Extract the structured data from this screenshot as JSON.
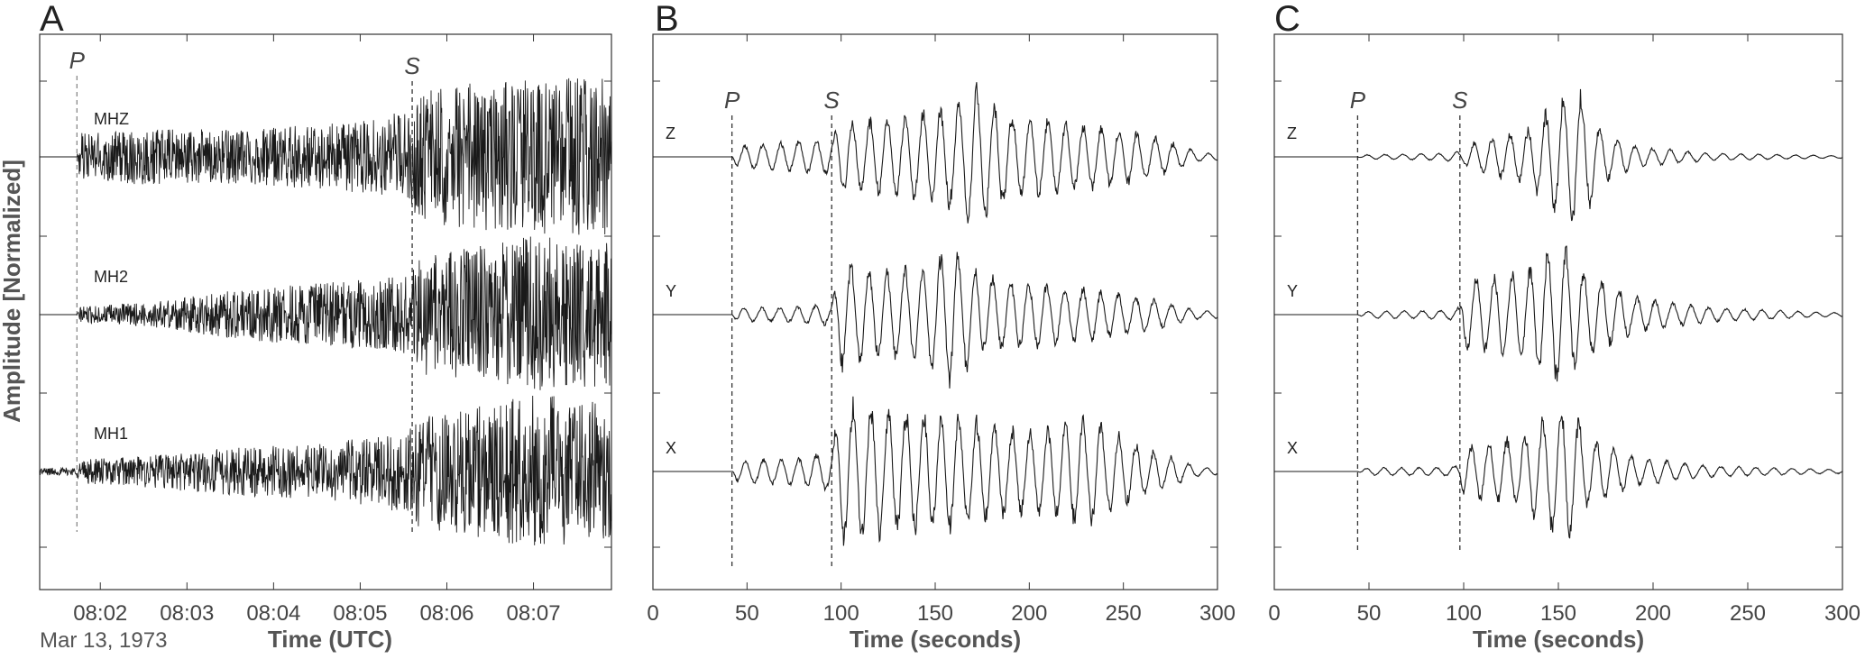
{
  "figure": {
    "ylabel": "Amplitude [Normalized]",
    "date_label": "Mar 13, 1973"
  },
  "chart_data": [
    {
      "type": "line",
      "panel": "A",
      "xlabel": "Time (UTC)",
      "ylabel": "Amplitude [Normalized]",
      "x_unit": "minutes after 08:00 UTC",
      "xlim": [
        1.3,
        7.9
      ],
      "x_ticks": [
        2,
        3,
        4,
        5,
        6,
        7
      ],
      "x_tick_labels": [
        "08:02",
        "08:03",
        "08:04",
        "08:05",
        "08:06",
        "08:07"
      ],
      "phase_picks": [
        {
          "label": "P",
          "x": 1.73
        },
        {
          "label": "S",
          "x": 5.6
        }
      ],
      "grid": false,
      "series": [
        {
          "name": "MHZ",
          "envelope": [
            [
              1.3,
              0.0
            ],
            [
              1.73,
              0.0
            ],
            [
              1.76,
              0.3
            ],
            [
              2.5,
              0.35
            ],
            [
              3.5,
              0.35
            ],
            [
              4.5,
              0.4
            ],
            [
              5.2,
              0.5
            ],
            [
              5.6,
              0.6
            ],
            [
              5.65,
              0.8
            ],
            [
              6.3,
              0.95
            ],
            [
              7.0,
              1.0
            ],
            [
              7.9,
              1.0
            ]
          ]
        },
        {
          "name": "MH2",
          "envelope": [
            [
              1.3,
              0.0
            ],
            [
              1.73,
              0.0
            ],
            [
              1.76,
              0.1
            ],
            [
              2.5,
              0.15
            ],
            [
              3.5,
              0.3
            ],
            [
              4.5,
              0.4
            ],
            [
              5.2,
              0.45
            ],
            [
              5.6,
              0.5
            ],
            [
              5.65,
              0.75
            ],
            [
              6.5,
              0.9
            ],
            [
              7.0,
              1.0
            ],
            [
              7.9,
              0.9
            ]
          ]
        },
        {
          "name": "MH1",
          "envelope": [
            [
              1.3,
              0.05
            ],
            [
              1.73,
              0.05
            ],
            [
              1.76,
              0.15
            ],
            [
              2.5,
              0.2
            ],
            [
              3.5,
              0.3
            ],
            [
              4.5,
              0.35
            ],
            [
              5.2,
              0.45
            ],
            [
              5.6,
              0.55
            ],
            [
              5.65,
              0.7
            ],
            [
              6.5,
              0.85
            ],
            [
              7.1,
              1.0
            ],
            [
              7.9,
              0.85
            ]
          ]
        }
      ]
    },
    {
      "type": "line",
      "panel": "B",
      "xlabel": "Time (seconds)",
      "xlim": [
        0,
        300
      ],
      "x_ticks": [
        0,
        50,
        100,
        150,
        200,
        250,
        300
      ],
      "phase_picks": [
        {
          "label": "P",
          "x": 42
        },
        {
          "label": "S",
          "x": 95
        }
      ],
      "grid": false,
      "series": [
        {
          "name": "Z",
          "envelope": [
            [
              0,
              0
            ],
            [
              42,
              0
            ],
            [
              45,
              0.15
            ],
            [
              70,
              0.2
            ],
            [
              95,
              0.25
            ],
            [
              100,
              0.5
            ],
            [
              130,
              0.55
            ],
            [
              160,
              0.7
            ],
            [
              172,
              1.0
            ],
            [
              190,
              0.6
            ],
            [
              230,
              0.45
            ],
            [
              260,
              0.35
            ],
            [
              292,
              0.05
            ]
          ]
        },
        {
          "name": "Y",
          "envelope": [
            [
              0,
              0
            ],
            [
              42,
              0
            ],
            [
              45,
              0.1
            ],
            [
              70,
              0.1
            ],
            [
              95,
              0.15
            ],
            [
              100,
              0.75
            ],
            [
              120,
              0.6
            ],
            [
              145,
              0.7
            ],
            [
              158,
              1.0
            ],
            [
              175,
              0.55
            ],
            [
              220,
              0.4
            ],
            [
              260,
              0.25
            ],
            [
              292,
              0.05
            ]
          ]
        },
        {
          "name": "X",
          "envelope": [
            [
              0,
              0
            ],
            [
              42,
              0
            ],
            [
              45,
              0.15
            ],
            [
              80,
              0.2
            ],
            [
              95,
              0.3
            ],
            [
              100,
              1.0
            ],
            [
              130,
              0.85
            ],
            [
              160,
              0.8
            ],
            [
              200,
              0.55
            ],
            [
              230,
              0.75
            ],
            [
              260,
              0.35
            ],
            [
              292,
              0.05
            ]
          ]
        }
      ]
    },
    {
      "type": "line",
      "panel": "C",
      "xlabel": "Time (seconds)",
      "xlim": [
        0,
        300
      ],
      "x_ticks": [
        0,
        50,
        100,
        150,
        200,
        250,
        300
      ],
      "phase_picks": [
        {
          "label": "P",
          "x": 44
        },
        {
          "label": "S",
          "x": 98
        }
      ],
      "grid": false,
      "series": [
        {
          "name": "Z",
          "envelope": [
            [
              0,
              0
            ],
            [
              44,
              0
            ],
            [
              48,
              0.03
            ],
            [
              90,
              0.05
            ],
            [
              98,
              0.08
            ],
            [
              105,
              0.2
            ],
            [
              135,
              0.4
            ],
            [
              150,
              0.8
            ],
            [
              160,
              1.0
            ],
            [
              172,
              0.4
            ],
            [
              190,
              0.15
            ],
            [
              230,
              0.05
            ],
            [
              292,
              0.02
            ]
          ]
        },
        {
          "name": "Y",
          "envelope": [
            [
              0,
              0
            ],
            [
              44,
              0
            ],
            [
              48,
              0.05
            ],
            [
              90,
              0.06
            ],
            [
              98,
              0.1
            ],
            [
              100,
              0.5
            ],
            [
              130,
              0.6
            ],
            [
              152,
              1.0
            ],
            [
              165,
              0.6
            ],
            [
              190,
              0.25
            ],
            [
              230,
              0.1
            ],
            [
              292,
              0.03
            ]
          ]
        },
        {
          "name": "X",
          "envelope": [
            [
              0,
              0
            ],
            [
              44,
              0
            ],
            [
              48,
              0.05
            ],
            [
              90,
              0.06
            ],
            [
              98,
              0.1
            ],
            [
              100,
              0.35
            ],
            [
              130,
              0.5
            ],
            [
              155,
              1.0
            ],
            [
              165,
              0.5
            ],
            [
              190,
              0.2
            ],
            [
              230,
              0.08
            ],
            [
              292,
              0.03
            ]
          ]
        }
      ]
    }
  ]
}
